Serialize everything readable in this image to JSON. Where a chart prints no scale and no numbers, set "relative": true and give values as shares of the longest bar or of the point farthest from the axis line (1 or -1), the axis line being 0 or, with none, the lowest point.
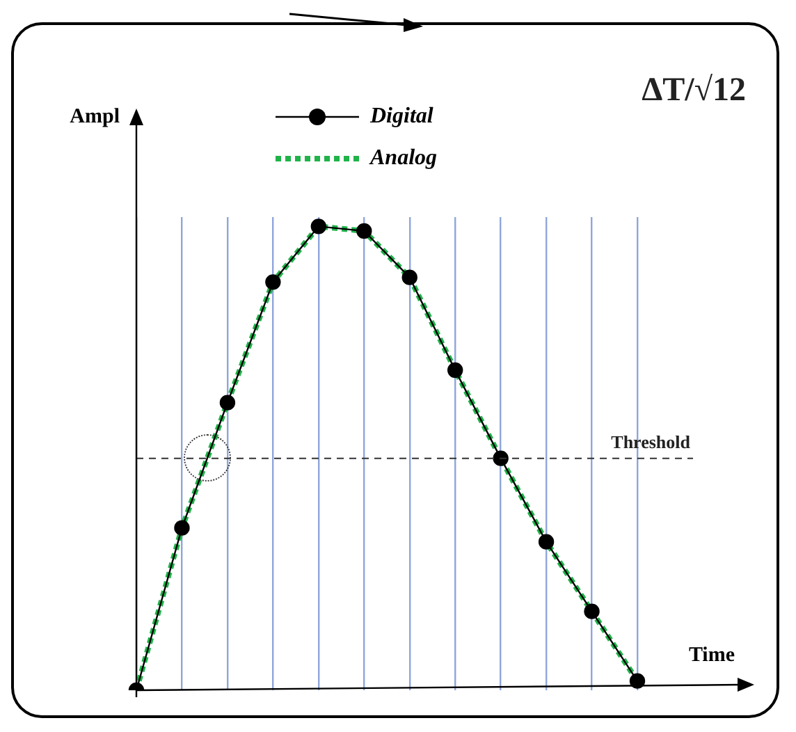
{
  "chart_data": {
    "type": "line",
    "relative": true,
    "xlabel": "Time",
    "ylabel": "Ampl",
    "categories": [
      null,
      null,
      null,
      null,
      null,
      null,
      null,
      null,
      null,
      null,
      null,
      null
    ],
    "series": [
      {
        "name": "Digital",
        "color": "#000000",
        "marker": "circle",
        "line_style": "solid",
        "values": [
          0,
          0.35,
          0.62,
          0.88,
          1,
          0.99,
          0.89,
          0.69,
          0.5,
          0.32,
          0.17,
          0.02
        ]
      },
      {
        "name": "Analog",
        "color": "#1fb34a",
        "marker": "none",
        "line_style": "dotted",
        "values": [
          0,
          0.35,
          0.62,
          0.88,
          1,
          0.99,
          0.89,
          0.69,
          0.5,
          0.32,
          0.17,
          0.02
        ]
      }
    ],
    "ref_lines": [
      {
        "axis": "y",
        "value": 0.5,
        "label": "Threshold",
        "color": "#333333",
        "line_style": "dashed"
      }
    ],
    "annotations": [
      "ΔT/√12"
    ],
    "grid": "x",
    "legend": "top",
    "tick_labels": false
  }
}
